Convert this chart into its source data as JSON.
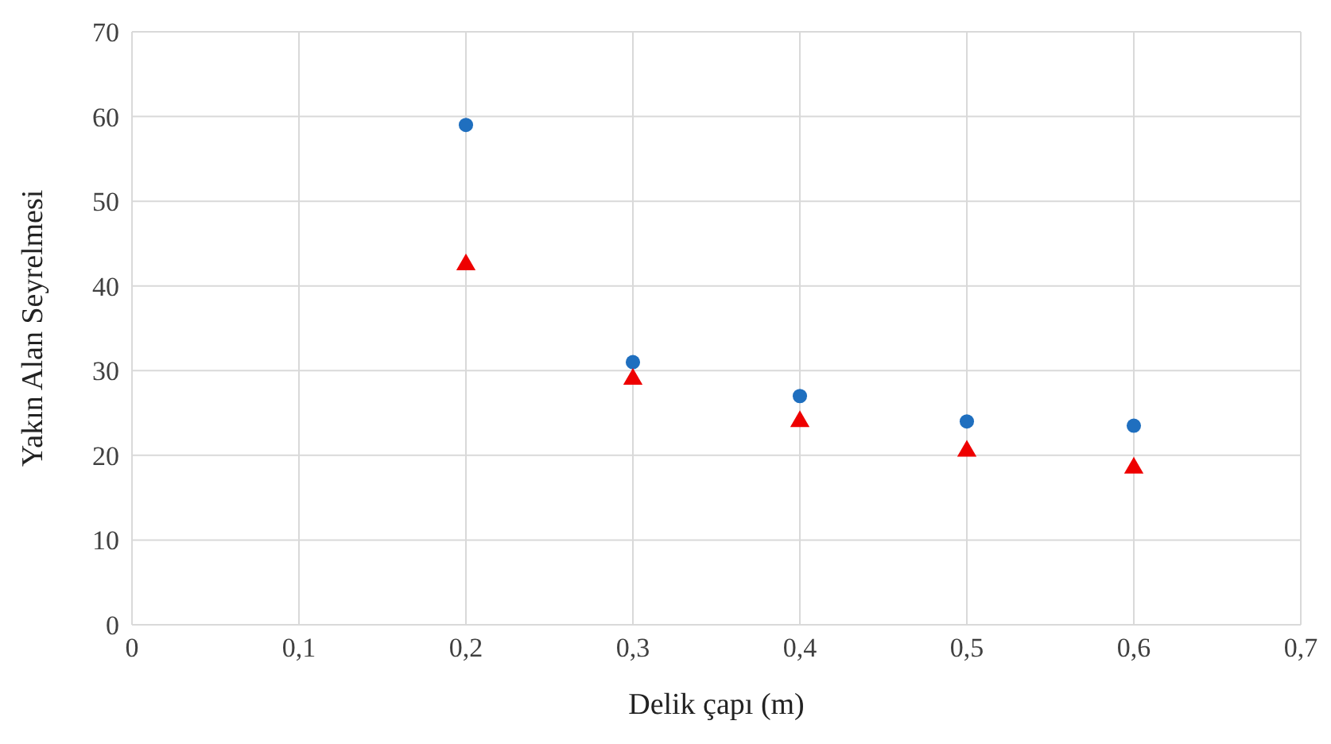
{
  "chart_data": {
    "type": "scatter",
    "xlabel": "Delik çapı (m)",
    "ylabel": "Yakın Alan Seyrelmesi",
    "xlim": [
      0,
      0.7
    ],
    "xticks": [
      {
        "value": 0,
        "label": "0"
      },
      {
        "value": 0.1,
        "label": "0,1"
      },
      {
        "value": 0.2,
        "label": "0,2"
      },
      {
        "value": 0.3,
        "label": "0,3"
      },
      {
        "value": 0.4,
        "label": "0,4"
      },
      {
        "value": 0.5,
        "label": "0,5"
      },
      {
        "value": 0.6,
        "label": "0,6"
      },
      {
        "value": 0.7,
        "label": "0,7"
      }
    ],
    "ylim": [
      0,
      70
    ],
    "yticks": [
      0,
      10,
      20,
      30,
      40,
      50,
      60,
      70
    ],
    "grid": true,
    "series": [
      {
        "color": "#1f6fbf",
        "marker": "circle",
        "x": [
          0.2,
          0.3,
          0.4,
          0.5,
          0.6
        ],
        "values": [
          59,
          31,
          27,
          24,
          23.5
        ]
      },
      {
        "color": "#ee0000",
        "marker": "triangle",
        "x": [
          0.2,
          0.3,
          0.4,
          0.5,
          0.6
        ],
        "values": [
          42.5,
          29,
          24,
          20.5,
          18.5
        ]
      }
    ]
  }
}
